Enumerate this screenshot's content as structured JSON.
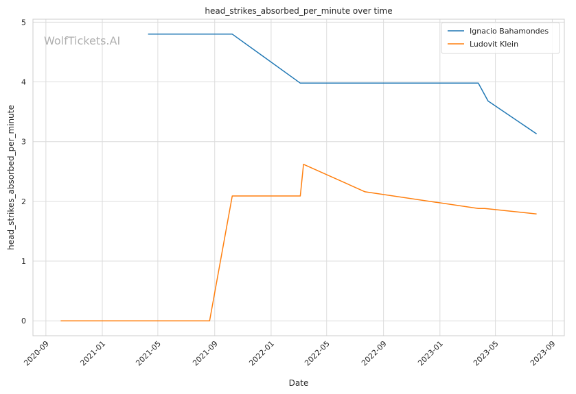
{
  "chart_data": {
    "type": "line",
    "title": "head_strikes_absorbed_per_minute over time",
    "xlabel": "Date",
    "ylabel": "head_strikes_absorbed_per_minute",
    "watermark": "WolfTickets.AI",
    "x_ticks": [
      "2020-09",
      "2021-01",
      "2021-05",
      "2021-09",
      "2022-01",
      "2022-05",
      "2022-09",
      "2023-01",
      "2023-05",
      "2023-09"
    ],
    "y_ticks": [
      "0",
      "1",
      "2",
      "3",
      "4",
      "5"
    ],
    "xlim": [
      "2020-08-04",
      "2023-09-27"
    ],
    "ylim": [
      -0.25,
      5.05
    ],
    "grid": true,
    "legend_position": "top-right",
    "series": [
      {
        "name": "Ignacio Bahamondes",
        "color": "#1f77b4",
        "points": [
          {
            "x": "2021-04-10",
            "y": 4.8
          },
          {
            "x": "2021-10-09",
            "y": 4.8
          },
          {
            "x": "2022-03-05",
            "y": 3.98
          },
          {
            "x": "2023-03-25",
            "y": 3.98
          },
          {
            "x": "2023-04-15",
            "y": 3.68
          },
          {
            "x": "2023-07-29",
            "y": 3.13
          }
        ]
      },
      {
        "name": "Ludovit Klein",
        "color": "#ff7f0e",
        "points": [
          {
            "x": "2020-10-03",
            "y": 0.0
          },
          {
            "x": "2021-08-21",
            "y": 0.0
          },
          {
            "x": "2021-10-09",
            "y": 2.09
          },
          {
            "x": "2022-03-05",
            "y": 2.09
          },
          {
            "x": "2022-03-12",
            "y": 2.62
          },
          {
            "x": "2022-07-23",
            "y": 2.16
          },
          {
            "x": "2023-03-25",
            "y": 1.88
          },
          {
            "x": "2023-04-08",
            "y": 1.88
          },
          {
            "x": "2023-07-29",
            "y": 1.79
          }
        ]
      }
    ]
  }
}
